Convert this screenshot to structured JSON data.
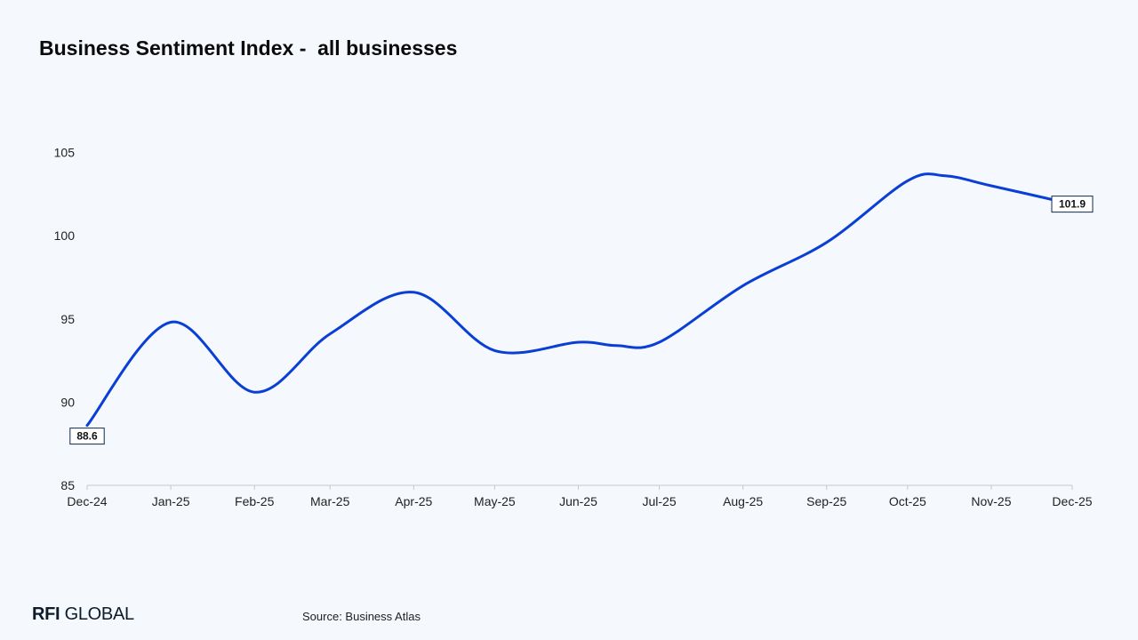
{
  "title": "Business Sentiment Index -  all businesses",
  "footer": {
    "logo_rfi": "RFI",
    "logo_global": "GLOBAL",
    "source": "Source: Business Atlas"
  },
  "colors": {
    "line": "#0a3fd6",
    "axis": "#c8c8c8",
    "label_border": "#0d2a4a",
    "background": "#f5f8fc"
  },
  "chart_data": {
    "type": "line",
    "title": "Business Sentiment Index -  all businesses",
    "xlabel": "",
    "ylabel": "",
    "categories": [
      "Dec-24",
      "Jan-25",
      "Feb-25",
      "Mar-25",
      "Apr-25",
      "May-25",
      "Jun-25",
      "Jul-25",
      "Aug-25",
      "Sep-25",
      "Oct-25",
      "Nov-25",
      "Dec-25"
    ],
    "x_dates": [
      "2024-12-01",
      "2025-01-01",
      "2025-02-01",
      "2025-03-01",
      "2025-04-01",
      "2025-05-01",
      "2025-06-01",
      "2025-07-01",
      "2025-08-01",
      "2025-09-01",
      "2025-10-01",
      "2025-11-01",
      "2025-12-01"
    ],
    "series": [
      {
        "x": [
          "2024-12-01",
          "2025-01-01",
          "2025-02-01",
          "2025-03-01",
          "2025-04-01",
          "2025-05-01",
          "2025-06-01",
          "2025-06-15",
          "2025-07-01",
          "2025-08-01",
          "2025-09-01",
          "2025-10-01",
          "2025-10-15",
          "2025-11-01",
          "2025-12-01"
        ],
        "values": [
          88.6,
          94.8,
          90.6,
          94.1,
          96.6,
          93.1,
          93.6,
          93.4,
          93.6,
          97.0,
          99.6,
          103.3,
          103.6,
          103.0,
          101.9
        ]
      }
    ],
    "data_labels": [
      {
        "x": "2024-12-01",
        "text": "88.6"
      },
      {
        "x": "2025-12-01",
        "text": "101.9"
      }
    ],
    "yticks": [
      "85",
      "90",
      "95",
      "100",
      "105"
    ],
    "ytick_values": [
      85,
      90,
      95,
      100,
      105
    ],
    "ylim": [
      85,
      106
    ],
    "grid": false,
    "legend": "none"
  }
}
